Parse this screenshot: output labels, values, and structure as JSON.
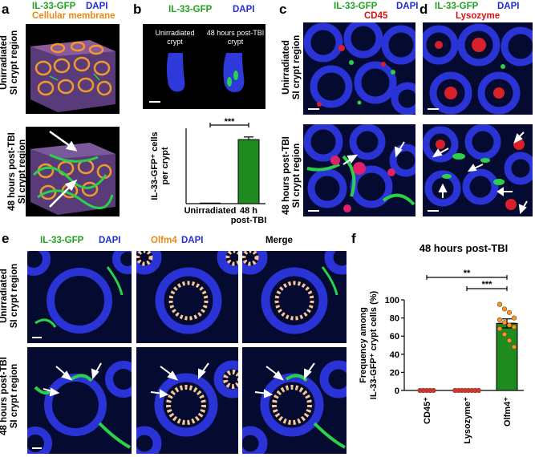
{
  "panels": {
    "a": {
      "label": "a",
      "ch_green": "IL-33-GFP",
      "ch_blue": "DAPI",
      "ch_orange": "Cellular membrane",
      "row_top": [
        "Unirradiated",
        "SI crypt region"
      ],
      "row_bottom": [
        "48 hours post-TBI",
        "SI crypt region"
      ]
    },
    "b": {
      "label": "b",
      "ch_green": "IL-33-GFP",
      "ch_blue": "DAPI",
      "crypt_left": [
        "Unirradiated",
        "crypt"
      ],
      "crypt_right": [
        "48 hours post-TBI",
        "crypt"
      ]
    },
    "c": {
      "label": "c",
      "ch_green": "IL-33-GFP",
      "ch_blue": "DAPI",
      "ch_red": "CD45",
      "row_top": [
        "Unirradiated",
        "SI crypt region"
      ],
      "row_bottom": [
        "48 hours post-TBI",
        "SI crypt region"
      ]
    },
    "d": {
      "label": "d",
      "ch_green": "IL-33-GFP",
      "ch_blue": "DAPI",
      "ch_red": "Lysozyme"
    },
    "e": {
      "label": "e",
      "col1_green": "IL-33-GFP",
      "col1_blue": "DAPI",
      "col2_orange": "Olfm4",
      "col2_blue": "DAPI",
      "col3": "Merge",
      "row_top": [
        "Unirradiated",
        "SI crypt region"
      ],
      "row_bottom": [
        "48 hours post-TBI",
        "SI crypt region"
      ]
    },
    "f": {
      "label": "f"
    }
  },
  "chart_data": [
    {
      "type": "bar",
      "panel": "b",
      "categories": [
        "Unirradiated",
        "48 h post-TBI"
      ],
      "category_lines": [
        [
          "Unirradiated"
        ],
        [
          "48 h",
          "post-TBI"
        ]
      ],
      "values": [
        0,
        1.7
      ],
      "error": [
        0,
        0.07
      ],
      "ylabel_lines": [
        "IL-33-GFP⁺ cells",
        "per crypt"
      ],
      "ylim": [
        0,
        2
      ],
      "significance": "***",
      "bar_color": "#1f8a1f"
    },
    {
      "type": "bar",
      "panel": "f",
      "title": "48 hours post-TBI",
      "categories": [
        "CD45⁺",
        "Lysozyme⁺",
        "Olfm4⁺"
      ],
      "values": [
        0,
        0,
        74
      ],
      "error": [
        0,
        0,
        5
      ],
      "points": [
        [
          0,
          0,
          0,
          0,
          0
        ],
        [
          0,
          0,
          0,
          0,
          0,
          0,
          0,
          0
        ],
        [
          95,
          90,
          86,
          80,
          78,
          75,
          72,
          70,
          68,
          62,
          55,
          48
        ]
      ],
      "ylabel_lines": [
        "Frequency among",
        "IL-33-GFP⁺ crypt cells (%)"
      ],
      "yticks": [
        0,
        20,
        40,
        60,
        80,
        100
      ],
      "ylim": [
        0,
        100
      ],
      "comparisons": [
        {
          "from": 0,
          "to": 2,
          "label": "**"
        },
        {
          "from": 1,
          "to": 2,
          "label": "***"
        }
      ],
      "point_colors": [
        "#d8333a",
        "#d8333a",
        "#ee9a2a"
      ],
      "bar_color": "#1f8a1f"
    }
  ]
}
